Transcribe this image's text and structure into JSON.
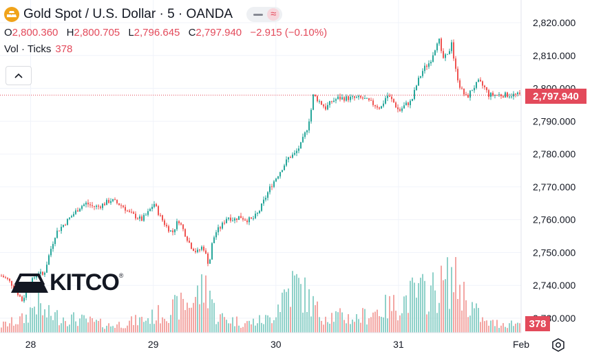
{
  "header": {
    "title": "Gold Spot / U.S. Dollar · 5 · OANDA",
    "ohlc": {
      "o_label": "O",
      "o_value": "2,800.360",
      "h_label": "H",
      "h_value": "2,800.705",
      "l_label": "L",
      "l_value": "2,796.645",
      "c_label": "C",
      "c_value": "2,797.940",
      "change": "−2.915 (−0.10%)"
    },
    "volume_label": "Vol · Ticks",
    "volume_value": "378"
  },
  "watermark": {
    "text": "KITCO",
    "reg": "®"
  },
  "badges": {
    "last_price": "2,797.940",
    "last_volume": "378"
  },
  "icons": {
    "logo": "gold-bars-icon",
    "collapse": "chevron-up-icon",
    "settings": "settings-icon"
  },
  "colors": {
    "up": "#26a69a",
    "down": "#ef5350",
    "accent": "#e34a5b",
    "logo": "#f0a31a"
  },
  "chart_data": {
    "type": "candlestick",
    "y_ticks": [
      "2,820.000",
      "2,810.000",
      "2,800.000",
      "2,790.000",
      "2,780.000",
      "2,770.000",
      "2,760.000",
      "2,750.000",
      "2,740.000",
      "2,730.000"
    ],
    "y_tick_values": [
      2820,
      2810,
      2800,
      2790,
      2780,
      2770,
      2760,
      2750,
      2740,
      2730
    ],
    "x_ticks": [
      "28",
      "29",
      "30",
      "31",
      "Feb"
    ],
    "x_tick_values": [
      0.55,
      1.55,
      2.55,
      3.55,
      4.55
    ],
    "ylim": [
      2726,
      2826
    ],
    "xlim": [
      0.3,
      4.55
    ],
    "last_close": 2797.94,
    "price_path": [
      [
        0.3,
        2743
      ],
      [
        0.35,
        2742
      ],
      [
        0.4,
        2740
      ],
      [
        0.45,
        2737
      ],
      [
        0.48,
        2735
      ],
      [
        0.5,
        2738
      ],
      [
        0.55,
        2741
      ],
      [
        0.6,
        2744
      ],
      [
        0.65,
        2743
      ],
      [
        0.7,
        2750
      ],
      [
        0.75,
        2756
      ],
      [
        0.8,
        2758
      ],
      [
        0.85,
        2760
      ],
      [
        0.9,
        2762
      ],
      [
        0.95,
        2764
      ],
      [
        1.0,
        2765
      ],
      [
        1.05,
        2764
      ],
      [
        1.1,
        2764
      ],
      [
        1.15,
        2765
      ],
      [
        1.2,
        2766
      ],
      [
        1.25,
        2765
      ],
      [
        1.3,
        2764
      ],
      [
        1.35,
        2762
      ],
      [
        1.4,
        2761
      ],
      [
        1.45,
        2760
      ],
      [
        1.5,
        2762
      ],
      [
        1.55,
        2765
      ],
      [
        1.6,
        2761
      ],
      [
        1.65,
        2758
      ],
      [
        1.7,
        2756
      ],
      [
        1.75,
        2760
      ],
      [
        1.8,
        2756
      ],
      [
        1.85,
        2752
      ],
      [
        1.9,
        2750
      ],
      [
        1.95,
        2752
      ],
      [
        2.0,
        2746
      ],
      [
        2.02,
        2752
      ],
      [
        2.05,
        2756
      ],
      [
        2.1,
        2758
      ],
      [
        2.15,
        2761
      ],
      [
        2.2,
        2760
      ],
      [
        2.25,
        2761
      ],
      [
        2.3,
        2760
      ],
      [
        2.35,
        2760
      ],
      [
        2.4,
        2762
      ],
      [
        2.45,
        2766
      ],
      [
        2.5,
        2770
      ],
      [
        2.55,
        2773
      ],
      [
        2.6,
        2776
      ],
      [
        2.65,
        2779
      ],
      [
        2.7,
        2780
      ],
      [
        2.75,
        2783
      ],
      [
        2.8,
        2788
      ],
      [
        2.83,
        2793
      ],
      [
        2.85,
        2798
      ],
      [
        2.9,
        2796
      ],
      [
        2.95,
        2794
      ],
      [
        3.0,
        2796
      ],
      [
        3.05,
        2797
      ],
      [
        3.1,
        2797
      ],
      [
        3.15,
        2797
      ],
      [
        3.2,
        2797
      ],
      [
        3.25,
        2797
      ],
      [
        3.3,
        2796
      ],
      [
        3.35,
        2795
      ],
      [
        3.4,
        2794
      ],
      [
        3.45,
        2798
      ],
      [
        3.5,
        2796
      ],
      [
        3.55,
        2793
      ],
      [
        3.6,
        2795
      ],
      [
        3.65,
        2796
      ],
      [
        3.7,
        2802
      ],
      [
        3.75,
        2806
      ],
      [
        3.8,
        2808
      ],
      [
        3.85,
        2813
      ],
      [
        3.87,
        2816
      ],
      [
        3.9,
        2809
      ],
      [
        3.95,
        2810
      ],
      [
        3.98,
        2815
      ],
      [
        4.0,
        2807
      ],
      [
        4.05,
        2800
      ],
      [
        4.1,
        2797
      ],
      [
        4.15,
        2800
      ],
      [
        4.2,
        2802
      ],
      [
        4.25,
        2800
      ],
      [
        4.28,
        2798
      ]
    ],
    "volume_max": 1300,
    "volume_profile": [
      [
        0.3,
        150
      ],
      [
        0.5,
        300
      ],
      [
        0.6,
        700
      ],
      [
        0.65,
        400
      ],
      [
        1.0,
        250
      ],
      [
        1.2,
        150
      ],
      [
        1.5,
        300
      ],
      [
        1.7,
        500
      ],
      [
        1.85,
        650
      ],
      [
        2.0,
        1050
      ],
      [
        2.05,
        350
      ],
      [
        2.3,
        200
      ],
      [
        2.5,
        300
      ],
      [
        2.6,
        800
      ],
      [
        2.7,
        1050
      ],
      [
        2.8,
        750
      ],
      [
        2.9,
        400
      ],
      [
        3.2,
        300
      ],
      [
        3.4,
        500
      ],
      [
        3.55,
        600
      ],
      [
        3.65,
        800
      ],
      [
        3.85,
        900
      ],
      [
        4.0,
        1200
      ],
      [
        4.1,
        700
      ],
      [
        4.25,
        200
      ]
    ]
  }
}
